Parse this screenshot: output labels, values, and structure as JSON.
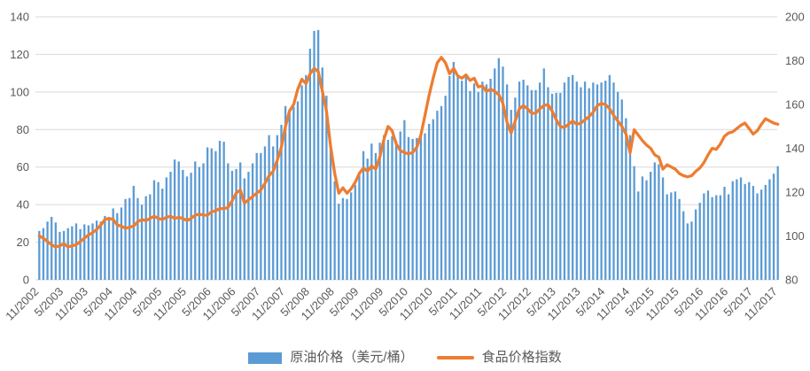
{
  "chart_data": {
    "type": "combo",
    "title": "",
    "grid": true,
    "legend_position": "bottom",
    "x_range": "11/2002 - 11/2017 monthly",
    "x_tick_labels": [
      "11/2002",
      "5/2003",
      "11/2003",
      "5/2004",
      "11/2004",
      "5/2005",
      "11/2005",
      "5/2006",
      "11/2006",
      "5/2007",
      "11/2007",
      "5/2008",
      "11/2008",
      "5/2009",
      "11/2009",
      "5/2010",
      "11/2010",
      "5/2011",
      "11/2011",
      "5/2012",
      "11/2012",
      "5/2013",
      "11/2013",
      "5/2014",
      "11/2014",
      "5/2015",
      "11/2015",
      "5/2016",
      "11/2016",
      "5/2017",
      "11/2017"
    ],
    "left_axis": {
      "min": 0,
      "max": 140,
      "step": 20,
      "ticks": [
        "0",
        "20",
        "40",
        "60",
        "80",
        "100",
        "120",
        "140"
      ]
    },
    "right_axis": {
      "min": 80,
      "max": 200,
      "step": 20,
      "ticks": [
        "80",
        "100",
        "120",
        "140",
        "160",
        "180",
        "200"
      ]
    },
    "colors": {
      "gridline": "#D9D9D9",
      "axis_text": "#595959",
      "background": "#FFFFFF"
    },
    "series": [
      {
        "name": "原油价格（美元/桶）",
        "type": "bar",
        "axis": "left",
        "color": "#5B9BD5",
        "values": [
          26,
          27.5,
          31,
          33.5,
          30.5,
          25.5,
          26,
          27.5,
          28.5,
          30,
          27,
          29.5,
          29,
          30,
          31.5,
          31,
          34,
          33.5,
          38,
          35.5,
          38.5,
          43,
          43.5,
          50,
          43.5,
          40,
          44.5,
          45.5,
          53,
          52,
          48.5,
          54.5,
          57.5,
          64,
          63,
          58.5,
          55,
          57,
          63,
          60,
          62,
          70.5,
          70,
          68.5,
          74,
          73.5,
          62,
          58,
          59,
          62.5,
          54,
          57.5,
          62,
          67.5,
          67.5,
          71,
          77,
          71,
          77,
          82.5,
          92.5,
          91,
          92,
          95,
          103.5,
          109,
          123,
          132.5,
          133,
          113,
          98,
          72,
          52.5,
          40.5,
          43.5,
          43,
          46.5,
          50.5,
          57.5,
          68.5,
          64.5,
          72.5,
          67.5,
          73,
          77,
          74.5,
          76.5,
          74,
          79,
          85,
          76,
          75,
          75.5,
          77,
          78,
          83,
          85.5,
          90,
          92.5,
          98,
          108.5,
          116,
          108,
          106,
          108,
          100.5,
          104.5,
          100,
          105.5,
          104,
          107,
          112.5,
          118,
          113.5,
          104,
          90.5,
          97,
          105.5,
          106.5,
          103.5,
          101,
          101,
          105,
          112.5,
          102.5,
          99,
          99.5,
          99.5,
          105,
          108,
          109,
          105.5,
          102.5,
          105.5,
          102,
          105,
          104,
          105,
          106,
          109,
          105,
          100,
          96,
          86,
          77,
          60.5,
          47,
          55,
          53,
          57.5,
          62.5,
          61.5,
          54.5,
          45.5,
          46.5,
          47,
          43,
          36.5,
          30,
          31,
          37.5,
          41,
          46,
          47.5,
          44,
          45,
          45,
          49.5,
          45.5,
          52.5,
          53.5,
          54.5,
          51,
          52,
          50,
          46,
          48,
          50.5,
          53.5,
          56.5,
          60.5
        ]
      },
      {
        "name": "食品价格指数",
        "type": "line",
        "axis": "right",
        "color": "#ED7D31",
        "values": [
          100,
          99,
          97.5,
          96,
          95,
          95.5,
          96.5,
          95,
          95.5,
          96,
          97.5,
          99,
          100.5,
          101.5,
          103,
          105,
          107.5,
          108,
          107.5,
          105,
          104.5,
          103.5,
          104,
          104.5,
          106.5,
          107.5,
          107,
          108,
          109,
          108,
          107.5,
          108.5,
          109,
          108,
          108.5,
          108,
          107,
          108,
          109.5,
          110,
          109.5,
          109.5,
          111,
          111.5,
          112.5,
          112.5,
          113,
          116,
          119.5,
          121,
          115,
          116.5,
          118,
          119.5,
          121,
          124,
          127.5,
          129.5,
          134.5,
          140.5,
          150,
          157,
          160,
          167,
          171.5,
          169.5,
          174,
          176.5,
          175,
          166,
          157,
          141,
          128.5,
          119.5,
          122,
          119.5,
          121.5,
          124.5,
          128.5,
          131,
          129.5,
          132,
          130.5,
          136,
          144,
          150,
          148,
          142,
          139,
          138,
          137.5,
          138,
          140.5,
          146,
          155,
          164,
          172,
          179,
          181.5,
          179,
          174,
          176.5,
          173,
          172,
          173.5,
          171,
          172,
          168,
          168.5,
          166,
          167,
          166,
          164.5,
          160.5,
          152,
          147,
          152.5,
          158,
          159.5,
          158,
          156,
          156,
          158,
          159.5,
          160,
          157,
          153,
          150,
          149.5,
          151,
          152.5,
          151,
          151.5,
          153,
          154.5,
          156.5,
          159.5,
          160.5,
          160,
          158,
          155,
          152.5,
          150,
          146.5,
          138,
          148.5,
          146,
          143.5,
          141.5,
          140,
          137,
          136,
          130.5,
          132.5,
          131.5,
          130.5,
          128.5,
          127.5,
          127,
          127.5,
          129.5,
          131,
          133.5,
          137,
          140,
          139.5,
          142,
          145.5,
          147,
          147.5,
          149,
          150.5,
          151.5,
          149,
          146.5,
          148,
          151,
          153.5,
          152.5,
          151.5,
          151
        ]
      }
    ]
  },
  "legend": {
    "oil_label": "原油价格（美元/桶）",
    "food_label": "食品价格指数"
  }
}
